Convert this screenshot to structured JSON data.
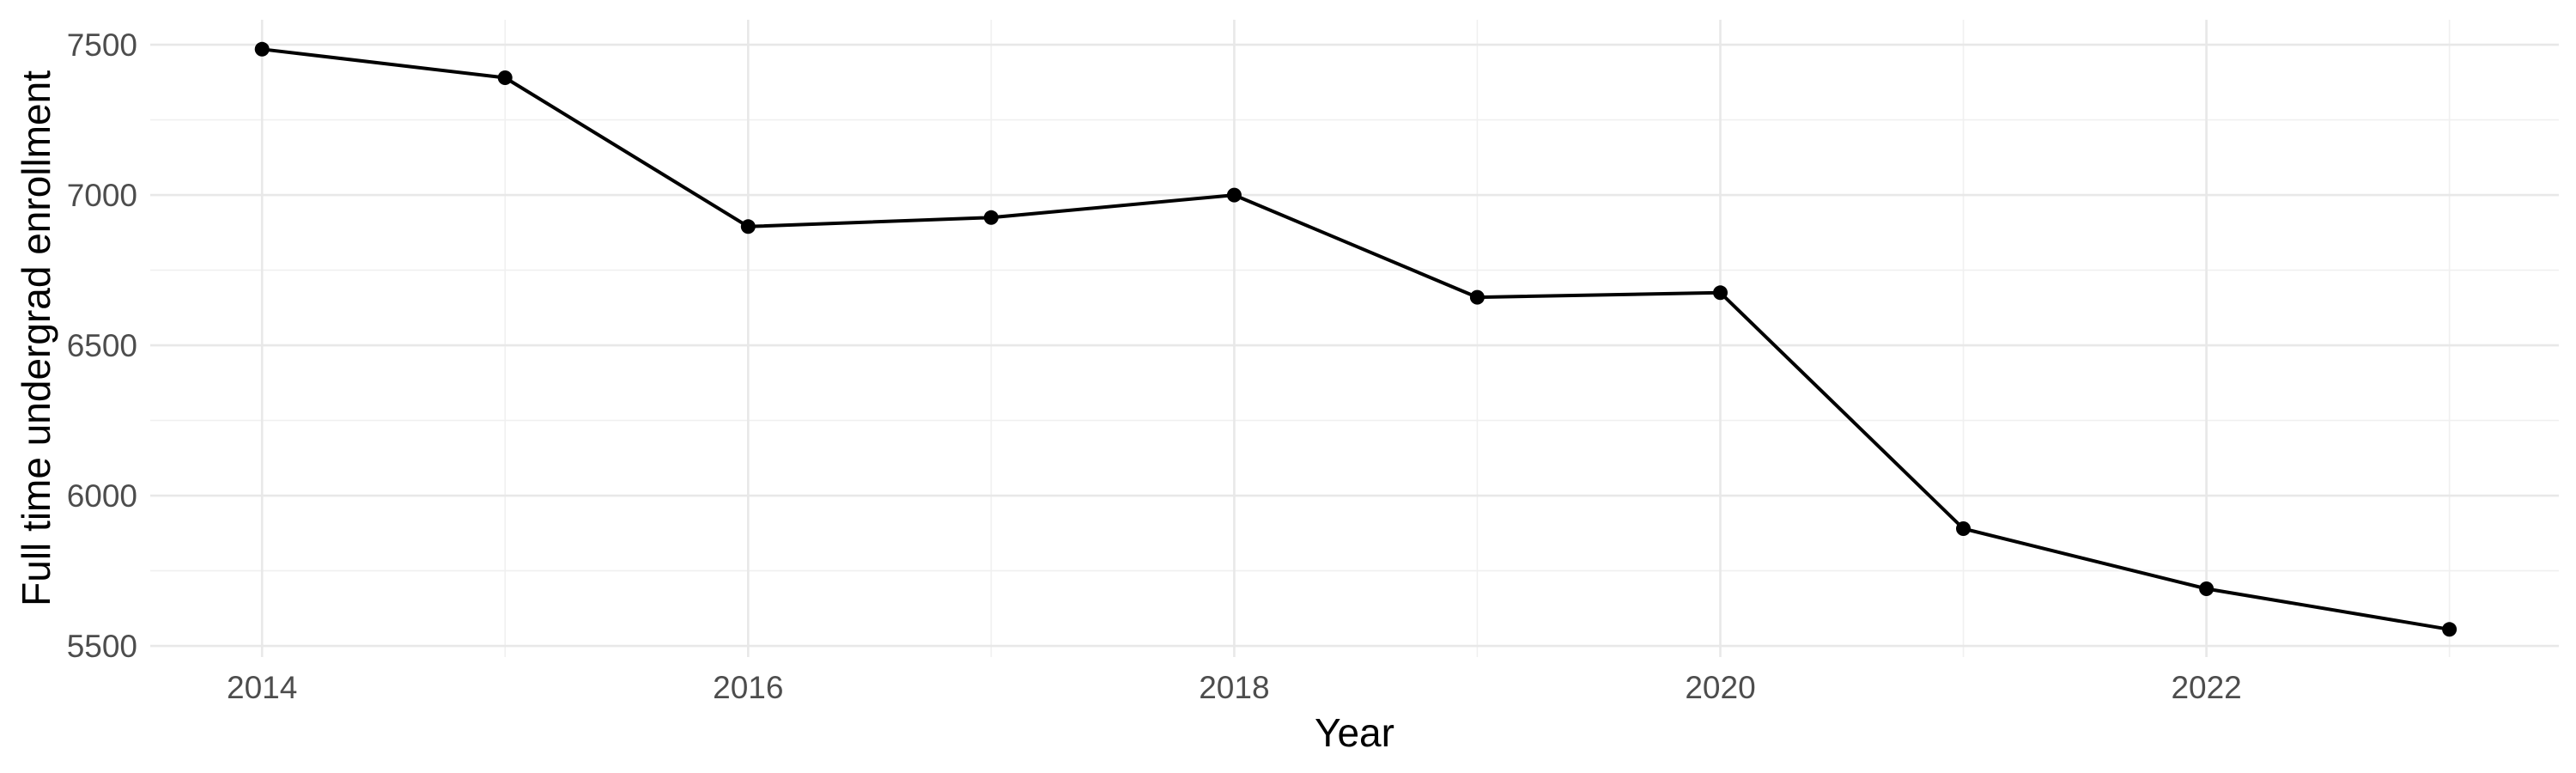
{
  "chart_data": {
    "type": "line",
    "title": "",
    "xlabel": "Year",
    "ylabel": "Full time undergrad enrollment",
    "x": [
      2014,
      2015,
      2016,
      2017,
      2018,
      2019,
      2020,
      2021,
      2022,
      2023
    ],
    "series": [
      {
        "name": "Full time undergrad enrollment",
        "values": [
          7485,
          7390,
          6895,
          6925,
          7000,
          6660,
          6675,
          5890,
          5690,
          5555
        ]
      }
    ],
    "x_major_ticks": [
      2014,
      2016,
      2018,
      2020,
      2022
    ],
    "x_minor_gridlines": [
      2015,
      2017,
      2019,
      2021,
      2023
    ],
    "y_major_ticks": [
      5500,
      6000,
      6500,
      7000,
      7500
    ],
    "y_minor_gridlines": [
      5750,
      6250,
      6750,
      7250
    ],
    "xlim": [
      2013.54,
      2023.45
    ],
    "ylim": [
      5463,
      7583
    ],
    "grid": true,
    "legend_position": "none",
    "marker": "point",
    "colors": {
      "line": "#000000",
      "point": "#000000",
      "grid_major": "#e8e8e8",
      "grid_minor": "#f0f0f0",
      "tick_label": "#4d4d4d",
      "axis_title": "#000000",
      "background": "#ffffff"
    }
  }
}
